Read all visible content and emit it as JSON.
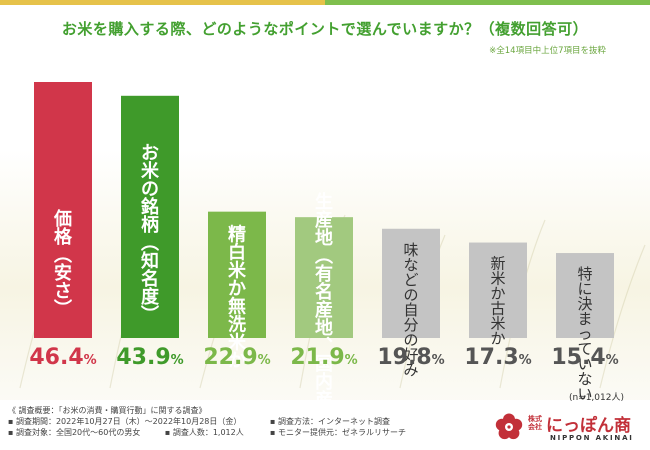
{
  "title": "お米を購入する際、どのようなポイントで選んでいますか？（複数回答可）",
  "note": "※全14項目中上位7項目を抜粋",
  "chart_data": {
    "type": "bar",
    "title": "お米を購入する際、どのようなポイントで選んでいますか？（複数回答可）",
    "unit": "%",
    "ylim": [
      0,
      50
    ],
    "categories": [
      "価格（安さ）",
      "お米の銘柄（知名度）",
      "精白米か無洗米か",
      "生産地（有名産地、国内産）",
      "味などの自分の好み",
      "新米か古米か",
      "特に決まっていない"
    ],
    "values": [
      46.4,
      43.9,
      22.9,
      21.9,
      19.8,
      17.3,
      15.4
    ],
    "value_labels": [
      "46.4",
      "43.9",
      "22.9",
      "21.9",
      "19.8",
      "17.3",
      "15.4"
    ],
    "percent_symbol": "%",
    "colors": [
      "#d1364a",
      "#3f9a2a",
      "#7cb84a",
      "#a2c97f",
      "#c4c4c4",
      "#c4c4c4",
      "#c4c4c4"
    ],
    "label_colors": [
      "#d1364a",
      "#3f9a2a",
      "#7cb84a",
      "#7cb84a",
      "#555555",
      "#555555",
      "#555555"
    ],
    "dark_label_from": 4
  },
  "sample": "(n=1,012人)",
  "footer": {
    "overview": "《 調査概要：「お米の消費・購買行動」に関する調査》",
    "period": "▪ 調査期間：2022年10月27日（木）～2022年10月28日（金）",
    "method": "▪ 調査方法：インターネット調査",
    "target": "▪ 調査対象：全国20代～60代の男女",
    "count": "▪ 調査人数：1,012人",
    "provider": "▪ モニター提供元：ゼネラルリサーチ"
  },
  "logo": {
    "corp": "株式会社",
    "name": "にっぽん商",
    "sub": "NIPPON AKINAI",
    "color": "#c23039"
  }
}
